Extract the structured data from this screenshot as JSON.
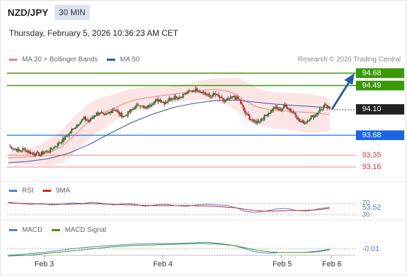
{
  "header": {
    "symbol": "NZD/JPY",
    "timeframe": "30 MIN",
    "datetime": "Thursday, February 5, 2026 10:36:23 AM CET"
  },
  "price_panel": {
    "legend": [
      {
        "label": "MA 20 + Bollinger Bands",
        "color": "#f08080"
      },
      {
        "label": "MA 50",
        "color": "#2f5597"
      }
    ],
    "credit": "Research © 2026 Trading Central",
    "levels": [
      {
        "value": "94.68",
        "kind": "resistance",
        "color": "#3a9a0a"
      },
      {
        "value": "94.49",
        "kind": "resistance",
        "color": "#3a9a0a"
      },
      {
        "value": "94.10",
        "kind": "current",
        "color": "#222222"
      },
      {
        "value": "93.68",
        "kind": "pivot",
        "color": "#1a66e0"
      },
      {
        "value": "93.35",
        "kind": "support",
        "color": "#e03030"
      },
      {
        "value": "93.16",
        "kind": "support",
        "color": "#e03030"
      }
    ]
  },
  "rsi_panel": {
    "legend": [
      {
        "label": "RSI",
        "color": "#4a7fd4"
      },
      {
        "label": "9MA",
        "color": "#d62020"
      }
    ],
    "value": "53.52",
    "upper": "70",
    "lower": "30"
  },
  "macd_panel": {
    "legend": [
      {
        "label": "MACD",
        "color": "#4a7fd4"
      },
      {
        "label": "MACD Signal",
        "color": "#3a9a0a"
      }
    ],
    "value": "-0.01"
  },
  "x_axis": {
    "labels": [
      "Feb 3",
      "Feb 4",
      "Feb 5",
      "Feb 6"
    ]
  },
  "chart_data": {
    "type": "candlestick",
    "instrument": "NZD/JPY",
    "interval": "30 MIN",
    "close_series_approx": [
      93.5,
      93.46,
      93.42,
      93.45,
      93.4,
      93.38,
      93.36,
      93.4,
      93.42,
      93.48,
      93.55,
      93.62,
      93.7,
      93.8,
      93.88,
      93.95,
      93.9,
      94.0,
      94.05,
      93.98,
      94.05,
      94.1,
      94.02,
      93.98,
      94.05,
      94.12,
      94.18,
      94.1,
      94.16,
      94.22,
      94.25,
      94.2,
      94.26,
      94.3,
      94.28,
      94.34,
      94.38,
      94.42,
      94.4,
      94.36,
      94.3,
      94.34,
      94.28,
      94.22,
      94.26,
      94.3,
      94.24,
      94.05,
      93.95,
      93.88,
      93.92,
      93.98,
      94.05,
      94.12,
      94.08,
      94.15,
      94.1,
      94.02,
      93.9,
      93.88,
      93.95,
      94.0,
      94.08,
      94.15,
      94.1
    ],
    "ma20_approx": [
      93.45,
      93.44,
      93.43,
      93.43,
      93.44,
      93.46,
      93.5,
      93.56,
      93.63,
      93.7,
      93.78,
      93.86,
      93.93,
      94.0,
      94.05,
      94.1,
      94.14,
      94.18,
      94.21,
      94.24,
      94.28,
      94.3,
      94.32,
      94.33,
      94.3,
      94.25,
      94.18,
      94.1,
      94.04,
      94.0,
      93.99,
      94.0,
      94.02,
      94.03
    ],
    "ma50_approx": [
      93.32,
      93.33,
      93.35,
      93.38,
      93.42,
      93.47,
      93.53,
      93.6,
      93.67,
      93.74,
      93.81,
      93.88,
      93.95,
      94.01,
      94.07,
      94.12,
      94.16,
      94.19,
      94.21,
      94.22,
      94.21,
      94.19,
      94.16,
      94.13,
      94.1,
      94.08
    ],
    "rsi_approx": [
      58,
      55,
      52,
      54,
      51,
      53,
      56,
      55,
      57,
      54,
      52,
      55,
      53,
      50,
      52,
      54,
      51,
      50,
      52,
      55,
      53,
      51,
      48,
      44,
      42,
      44,
      47,
      49,
      46,
      44,
      48,
      50,
      53.52
    ],
    "rsi_ma_approx": [
      55,
      55,
      54,
      54,
      54,
      54,
      54,
      55,
      55,
      55,
      54,
      54,
      54,
      53,
      53,
      53,
      52,
      52,
      52,
      52,
      52,
      52,
      51,
      50,
      48,
      47,
      46,
      46,
      46,
      46,
      47,
      48,
      49
    ],
    "macd_approx": [
      0.02,
      0.03,
      0.05,
      0.07,
      0.09,
      0.1,
      0.11,
      0.12,
      0.12,
      0.11,
      0.1,
      0.09,
      0.08,
      0.07,
      0.06,
      0.05,
      0.03,
      0.01,
      -0.01,
      -0.03,
      -0.04,
      -0.04,
      -0.03,
      -0.02,
      -0.01
    ],
    "macd_signal_approx": [
      0.01,
      0.02,
      0.03,
      0.05,
      0.06,
      0.08,
      0.09,
      0.1,
      0.11,
      0.11,
      0.11,
      0.1,
      0.09,
      0.08,
      0.07,
      0.06,
      0.05,
      0.03,
      0.02,
      0.0,
      -0.01,
      -0.02,
      -0.02,
      -0.02,
      -0.01
    ],
    "projection": {
      "from": "94.10",
      "to": "94.68"
    },
    "ylim": [
      93.1,
      94.75
    ]
  }
}
